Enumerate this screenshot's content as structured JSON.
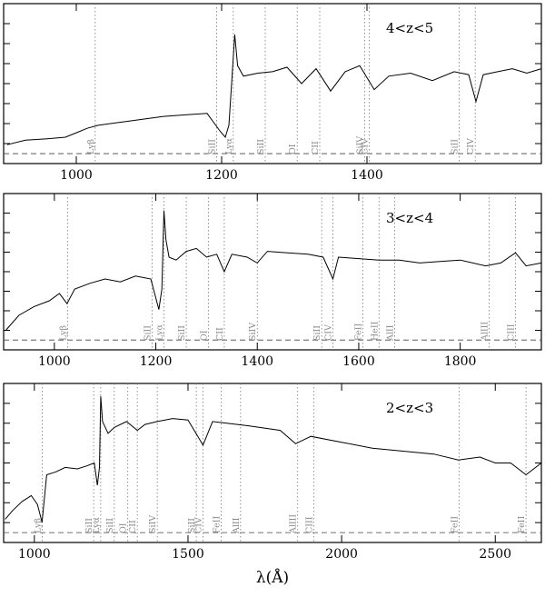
{
  "figure": {
    "xlabel": "λ(Å)"
  },
  "chart_data": [
    {
      "type": "line",
      "panel_label": "4<z<5",
      "xlim": [
        900,
        1640
      ],
      "ylim": [
        0,
        1
      ],
      "x_ticks": [
        1000,
        1200,
        1400
      ],
      "x_tick_labels": [
        "1000",
        "1200",
        "1400"
      ],
      "series": [
        {
          "x": [
            905,
            930,
            960,
            985,
            1000,
            1015,
            1030,
            1060,
            1090,
            1120,
            1150,
            1180,
            1198,
            1205,
            1210,
            1214,
            1218,
            1222,
            1230,
            1250,
            1270,
            1290,
            1310,
            1330,
            1350,
            1370,
            1390,
            1410,
            1430,
            1460,
            1490,
            1520,
            1540,
            1550,
            1560,
            1580,
            1600,
            1620,
            1640
          ],
          "y": [
            0.09,
            0.12,
            0.13,
            0.14,
            0.17,
            0.2,
            0.22,
            0.24,
            0.26,
            0.28,
            0.29,
            0.3,
            0.18,
            0.14,
            0.22,
            0.52,
            0.83,
            0.62,
            0.55,
            0.57,
            0.58,
            0.61,
            0.5,
            0.6,
            0.45,
            0.58,
            0.62,
            0.46,
            0.55,
            0.57,
            0.52,
            0.58,
            0.56,
            0.38,
            0.56,
            0.58,
            0.6,
            0.57,
            0.6
          ]
        }
      ],
      "lines": [
        {
          "label": "Lyβ",
          "x": 1026
        },
        {
          "label": "SiII",
          "x": 1193
        },
        {
          "label": "Lyα",
          "x": 1216
        },
        {
          "label": "SiII",
          "x": 1260
        },
        {
          "label": "OI",
          "x": 1304
        },
        {
          "label": "CII",
          "x": 1335
        },
        {
          "label": "SiIV",
          "x": 1397
        },
        {
          "label": "CIV",
          "x": 1403
        },
        {
          "label": "SiII",
          "x": 1527
        },
        {
          "label": "CIV",
          "x": 1549
        }
      ]
    },
    {
      "type": "line",
      "panel_label": "3<z<4",
      "xlim": [
        900,
        1960
      ],
      "ylim": [
        0,
        1
      ],
      "x_ticks": [
        1000,
        1200,
        1400,
        1600,
        1800
      ],
      "x_tick_labels": [
        "1000",
        "1200",
        "1400",
        "1600",
        "1800"
      ],
      "series": [
        {
          "x": [
            905,
            930,
            960,
            990,
            1010,
            1025,
            1040,
            1070,
            1100,
            1130,
            1160,
            1190,
            1200,
            1206,
            1212,
            1216,
            1220,
            1226,
            1240,
            1260,
            1280,
            1300,
            1320,
            1335,
            1350,
            1380,
            1400,
            1420,
            1460,
            1500,
            1530,
            1549,
            1560,
            1600,
            1640,
            1680,
            1720,
            1760,
            1800,
            1850,
            1880,
            1909,
            1930,
            1960
          ],
          "y": [
            0.1,
            0.2,
            0.26,
            0.3,
            0.35,
            0.28,
            0.38,
            0.42,
            0.45,
            0.43,
            0.47,
            0.45,
            0.32,
            0.24,
            0.38,
            0.92,
            0.72,
            0.6,
            0.58,
            0.64,
            0.66,
            0.6,
            0.62,
            0.5,
            0.62,
            0.6,
            0.56,
            0.64,
            0.63,
            0.62,
            0.6,
            0.45,
            0.6,
            0.59,
            0.58,
            0.58,
            0.56,
            0.57,
            0.58,
            0.54,
            0.56,
            0.63,
            0.54,
            0.56
          ]
        }
      ],
      "lines": [
        {
          "label": "Lyβ",
          "x": 1026
        },
        {
          "label": "SiII",
          "x": 1193
        },
        {
          "label": "Lyα",
          "x": 1216
        },
        {
          "label": "SiII",
          "x": 1260
        },
        {
          "label": "OI",
          "x": 1304
        },
        {
          "label": "CII",
          "x": 1335
        },
        {
          "label": "SiIV",
          "x": 1400
        },
        {
          "label": "SiII",
          "x": 1527
        },
        {
          "label": "CIV",
          "x": 1549
        },
        {
          "label": "FeII",
          "x": 1608
        },
        {
          "label": "HeII",
          "x": 1640
        },
        {
          "label": "AlII",
          "x": 1671
        },
        {
          "label": "AlIII",
          "x": 1857
        },
        {
          "label": "CIII",
          "x": 1909
        }
      ]
    },
    {
      "type": "line",
      "panel_label": "2<z<3",
      "xlim": [
        900,
        2650
      ],
      "ylim": [
        0,
        1
      ],
      "x_ticks": [
        1000,
        1500,
        2000,
        2500
      ],
      "x_tick_labels": [
        "1000",
        "1500",
        "2000",
        "2500"
      ],
      "series": [
        {
          "x": [
            905,
            930,
            960,
            990,
            1010,
            1025,
            1040,
            1070,
            1100,
            1140,
            1170,
            1195,
            1205,
            1212,
            1216,
            1222,
            1240,
            1260,
            1300,
            1335,
            1360,
            1400,
            1450,
            1500,
            1549,
            1580,
            1620,
            1700,
            1800,
            1850,
            1900,
            2000,
            2100,
            2200,
            2300,
            2380,
            2450,
            2500,
            2550,
            2600,
            2650
          ],
          "y": [
            0.12,
            0.18,
            0.24,
            0.28,
            0.22,
            0.1,
            0.42,
            0.44,
            0.47,
            0.46,
            0.48,
            0.5,
            0.35,
            0.47,
            0.95,
            0.78,
            0.7,
            0.74,
            0.78,
            0.72,
            0.76,
            0.78,
            0.8,
            0.79,
            0.62,
            0.78,
            0.77,
            0.75,
            0.72,
            0.63,
            0.68,
            0.64,
            0.6,
            0.58,
            0.56,
            0.52,
            0.54,
            0.5,
            0.5,
            0.42,
            0.5
          ]
        }
      ],
      "lines": [
        {
          "label": "Lyβ",
          "x": 1026
        },
        {
          "label": "SiII",
          "x": 1193
        },
        {
          "label": "Lyα",
          "x": 1216
        },
        {
          "label": "SiII",
          "x": 1260
        },
        {
          "label": "OI",
          "x": 1304
        },
        {
          "label": "CII",
          "x": 1335
        },
        {
          "label": "SiIV",
          "x": 1400
        },
        {
          "label": "SiII",
          "x": 1527
        },
        {
          "label": "CIV",
          "x": 1549
        },
        {
          "label": "FeII",
          "x": 1608
        },
        {
          "label": "AlII",
          "x": 1671
        },
        {
          "label": "AlIII",
          "x": 1857
        },
        {
          "label": "CIII",
          "x": 1909
        },
        {
          "label": "FeII",
          "x": 2382
        },
        {
          "label": "FeII",
          "x": 2600
        }
      ]
    }
  ]
}
